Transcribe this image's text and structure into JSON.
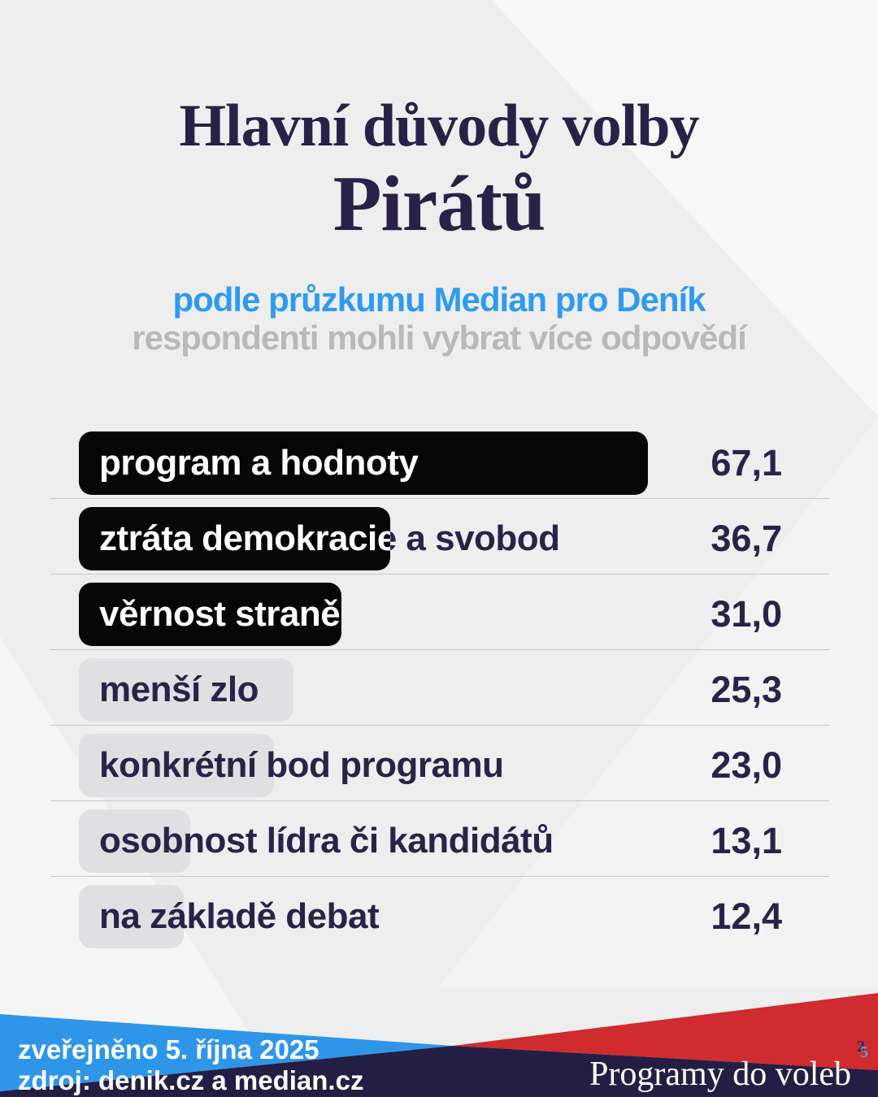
{
  "header": {
    "title_line1": "Hlavní důvody volby",
    "title_line2": "Pirátů",
    "subtitle_blue": "podle průzkumu Median pro Deník",
    "subtitle_gray": "respondenti mohli vybrat více odpovědí"
  },
  "chart_data": {
    "type": "bar",
    "orientation": "horizontal",
    "title": "Hlavní důvody volby Pirátů",
    "subtitle": "podle průzkumu Median pro Deník — respondenti mohli vybrat více odpovědí",
    "categories": [
      "program a hodnoty",
      "ztráta demokracie a svobod",
      "věrnost straně",
      "menší zlo",
      "konkrétní bod programu",
      "osobnost lídra či kandidátů",
      "na základě debat"
    ],
    "values": [
      67.1,
      36.7,
      31.0,
      25.3,
      23.0,
      13.1,
      12.4
    ],
    "value_labels": [
      "67,1",
      "36,7",
      "31,0",
      "25,3",
      "23,0",
      "13,1",
      "12,4"
    ],
    "highlighted": [
      true,
      true,
      true,
      false,
      false,
      false,
      false
    ],
    "xlim": [
      0,
      67.1
    ],
    "grid": false,
    "legend": false
  },
  "footer": {
    "published": "zveřejněno 5. října 2025",
    "source": "zdroj: denik.cz a median.cz",
    "brand": "Programy do voleb",
    "sup_left": "2",
    "sup_right": "5"
  },
  "colors": {
    "background": "#EFEEEF",
    "title": "#2A2148",
    "accent_blue": "#2D9BF2",
    "muted_gray": "#B9B8BA",
    "value_navy": "#2A2349",
    "bar_black": "#060606",
    "bar_gray": "#E0DFE2",
    "separator": "#C9C8CA",
    "footer_blue": "#2E96E8",
    "footer_red": "#D02B2E",
    "footer_navy": "#251E44",
    "brand_sup_left_color": "#1C2F6B",
    "brand_sup_right_color": "#4E9CD9"
  }
}
